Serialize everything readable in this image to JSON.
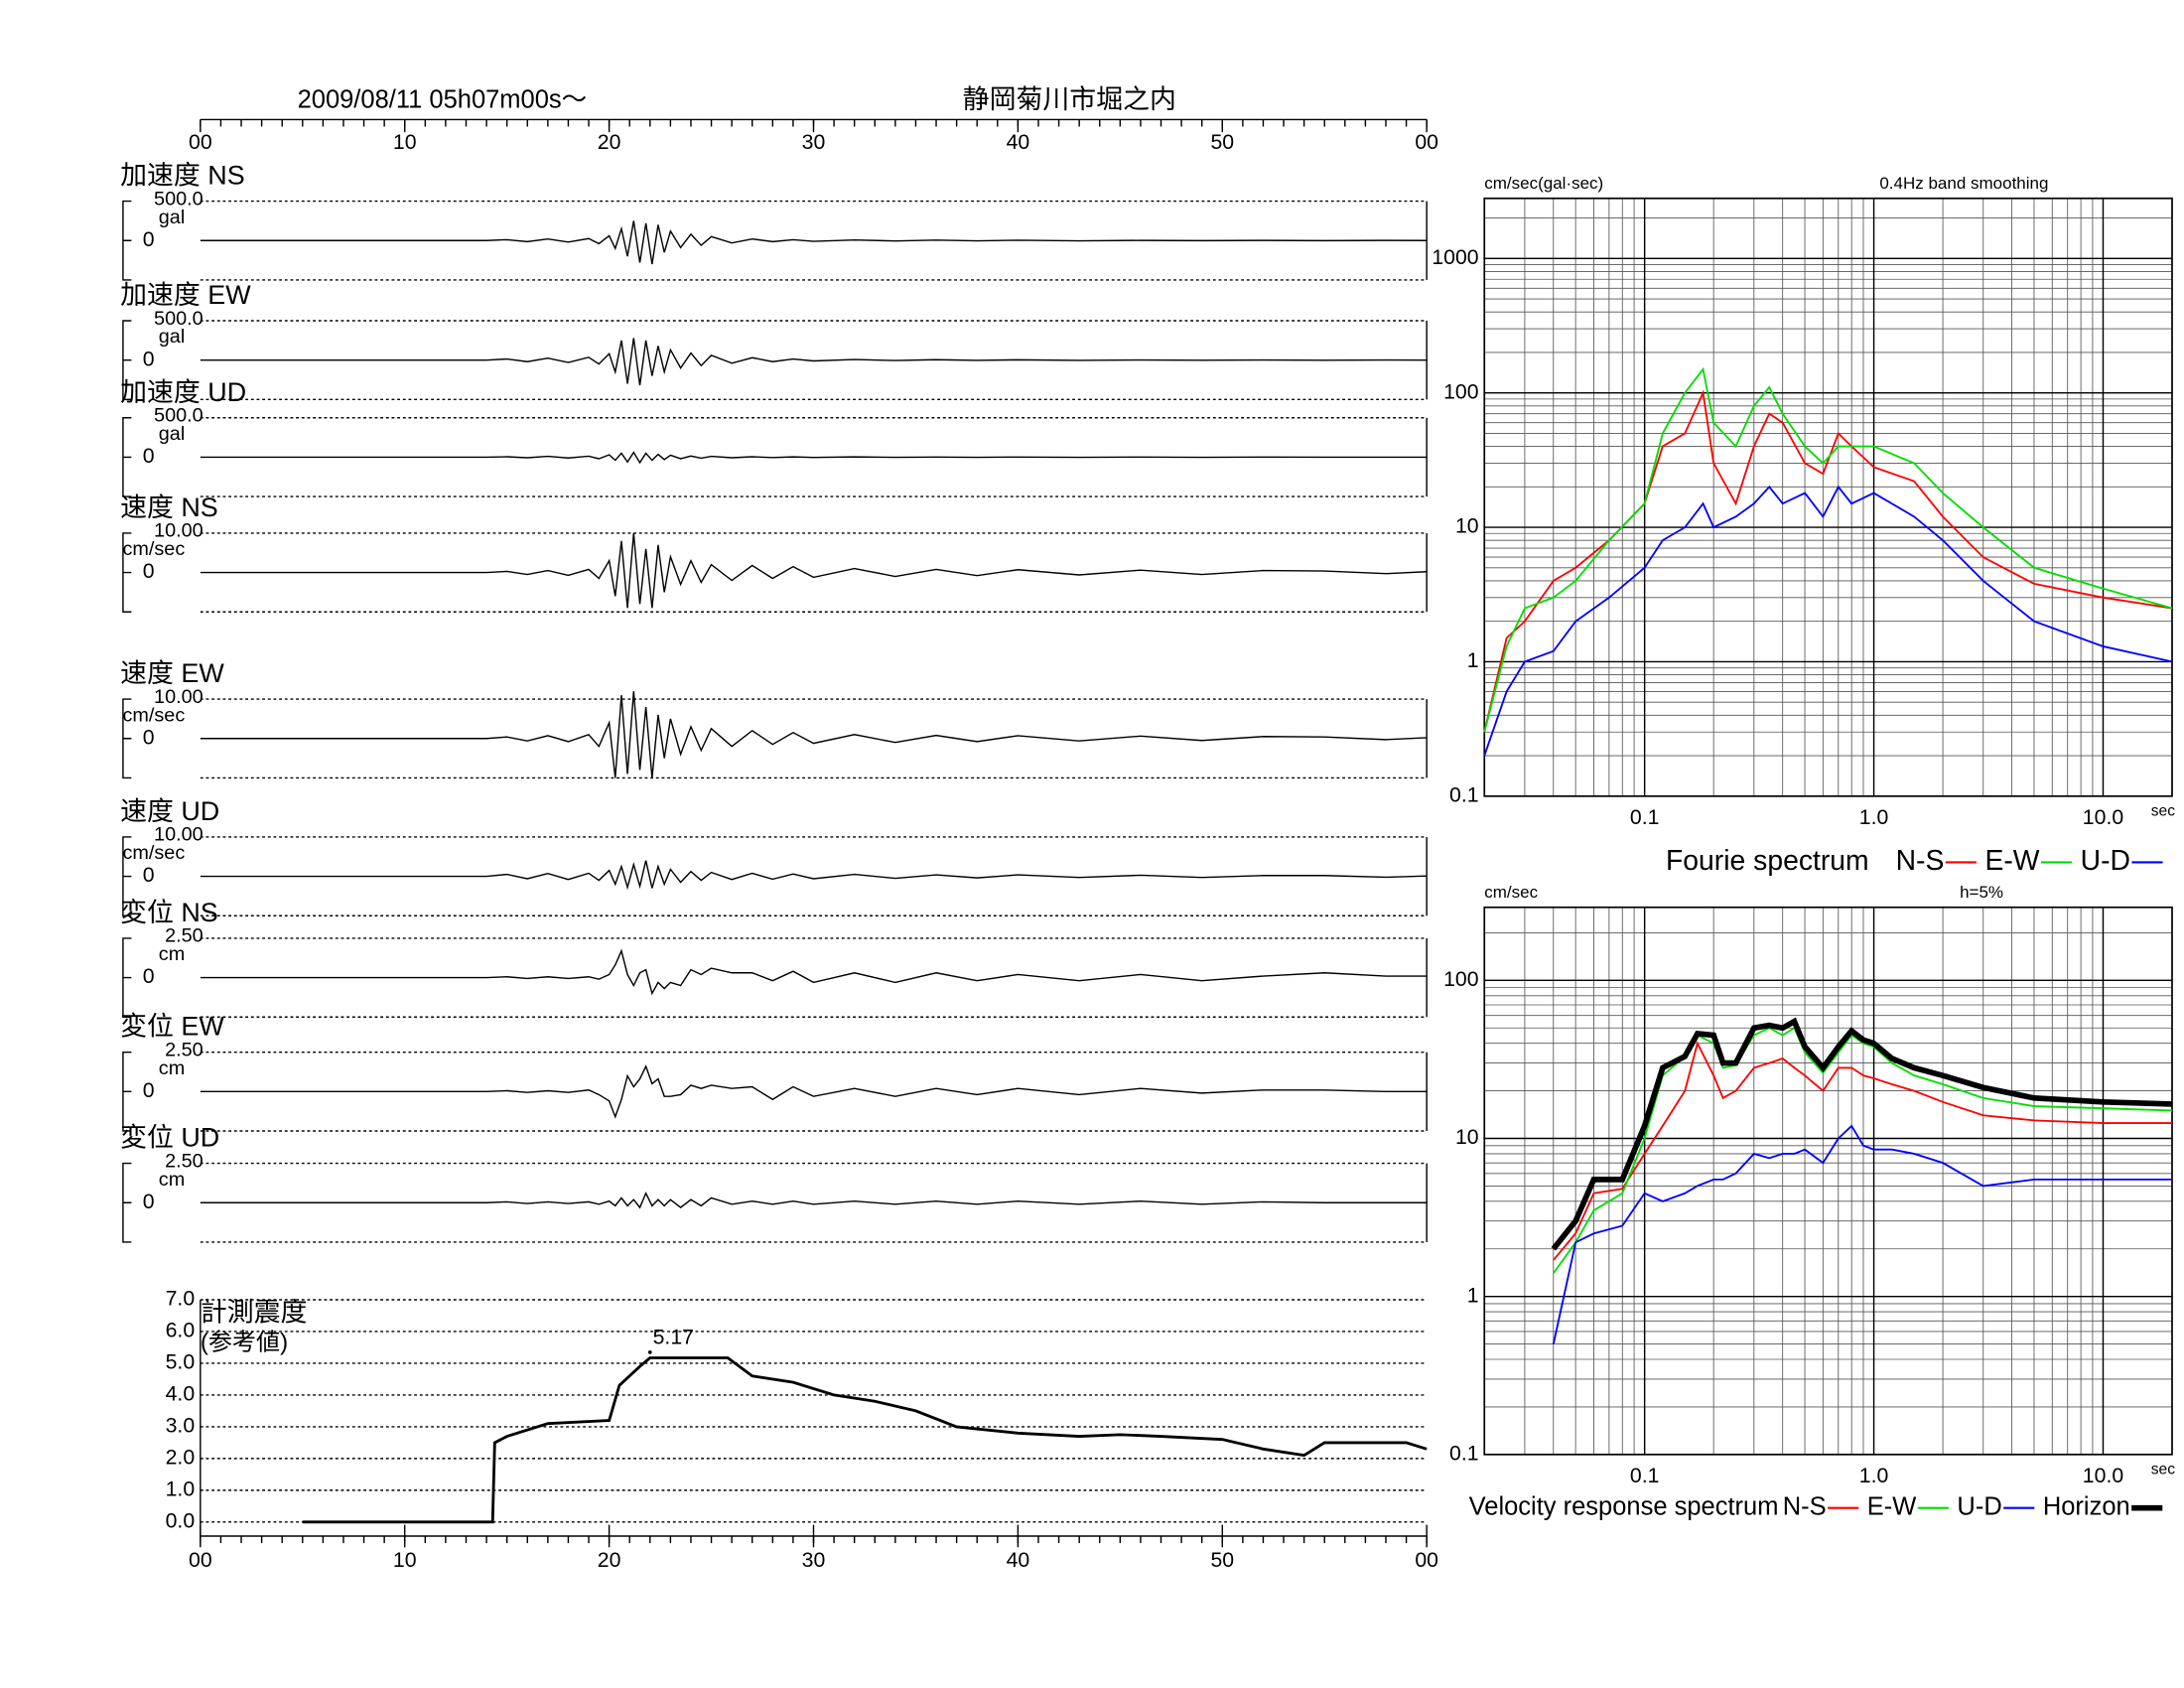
{
  "chart_data": [
    {
      "type": "waveform",
      "title": "2009/08/11  05h07m00s〜",
      "subtitle": "静岡菊川市堀之内",
      "xlim": [
        0,
        60
      ],
      "xticks": [
        {
          "value": 0,
          "label": "00"
        },
        10,
        20,
        30,
        40,
        50,
        {
          "value": 60,
          "label": "00"
        }
      ],
      "x": [
        0,
        14,
        15,
        16,
        17,
        18,
        19,
        19.5,
        20,
        20.3,
        20.6,
        20.9,
        21.2,
        21.5,
        21.8,
        22.1,
        22.4,
        22.7,
        23,
        23.5,
        24,
        24.5,
        25,
        26,
        27,
        28,
        29,
        30,
        32,
        34,
        36,
        38,
        40,
        43,
        46,
        49,
        52,
        55,
        58,
        60
      ],
      "panels": [
        {
          "name": "加速度 NS",
          "unit": "gal",
          "ylim": [
            -500,
            500
          ],
          "yticks": [
            {
              "value": 500,
              "label": "500.0"
            },
            0
          ],
          "values": [
            0,
            0,
            10,
            -15,
            20,
            -20,
            25,
            -40,
            60,
            -100,
            150,
            -200,
            250,
            -280,
            220,
            -300,
            200,
            -150,
            120,
            -90,
            80,
            -60,
            50,
            -30,
            20,
            -15,
            10,
            -10,
            8,
            -6,
            5,
            -4,
            3,
            -3,
            2,
            -2,
            2,
            -1,
            1,
            0
          ]
        },
        {
          "name": "加速度 EW",
          "unit": "gal",
          "ylim": [
            -500,
            500
          ],
          "yticks": [
            {
              "value": 500,
              "label": "500.0"
            },
            0
          ],
          "values": [
            0,
            0,
            15,
            -20,
            25,
            -30,
            35,
            -50,
            80,
            -150,
            250,
            -300,
            280,
            -320,
            250,
            -200,
            180,
            -150,
            130,
            -100,
            90,
            -70,
            60,
            -40,
            30,
            -20,
            15,
            -10,
            8,
            -6,
            5,
            -4,
            3,
            -3,
            2,
            -2,
            2,
            -1,
            1,
            0
          ]
        },
        {
          "name": "加速度 UD",
          "unit": "gal",
          "ylim": [
            -500,
            500
          ],
          "yticks": [
            {
              "value": 500,
              "label": "500.0"
            },
            0
          ],
          "values": [
            0,
            0,
            5,
            -8,
            10,
            -10,
            12,
            -20,
            30,
            -40,
            50,
            -60,
            60,
            -70,
            50,
            -40,
            35,
            -30,
            25,
            -20,
            15,
            -12,
            10,
            -8,
            6,
            -5,
            4,
            -3,
            3,
            -2,
            2,
            -2,
            1,
            -1,
            1,
            -1,
            1,
            0,
            0,
            0
          ]
        },
        {
          "name": "速度 NS",
          "unit": "cm/sec",
          "ylim": [
            -10,
            10
          ],
          "yticks": [
            {
              "value": 10,
              "label": "10.00"
            },
            0
          ],
          "values": [
            0,
            0,
            0.3,
            -0.5,
            0.5,
            -0.7,
            0.8,
            -1.5,
            3,
            -6,
            8,
            -9,
            10,
            -8,
            6,
            -9,
            7,
            -5,
            4,
            -3,
            3,
            -2.5,
            2,
            -2,
            1.8,
            -1.5,
            1.5,
            -1.2,
            1,
            -1,
            0.8,
            -0.8,
            0.7,
            -0.6,
            0.6,
            -0.5,
            0.5,
            0.4,
            -0.3,
            0.2
          ]
        },
        {
          "name": "速度 EW",
          "unit": "cm/sec",
          "ylim": [
            -10,
            10
          ],
          "yticks": [
            {
              "value": 10,
              "label": "10.00"
            },
            0
          ],
          "values": [
            0,
            0,
            0.4,
            -0.6,
            0.7,
            -0.8,
            1,
            -2,
            4,
            -10,
            11,
            -9,
            12,
            -8,
            8,
            -10,
            6,
            -5,
            5,
            -4,
            3,
            -3,
            2.5,
            -2,
            2,
            -1.5,
            1.5,
            -1.2,
            1,
            -1,
            0.8,
            -0.8,
            0.7,
            -0.6,
            0.6,
            -0.5,
            0.5,
            0.4,
            -0.3,
            0.2
          ]
        },
        {
          "name": "速度 UD",
          "unit": "cm/sec",
          "ylim": [
            -10,
            10
          ],
          "yticks": [
            {
              "value": 10,
              "label": "10.00"
            },
            0
          ],
          "values": [
            0,
            0,
            0.5,
            -0.6,
            0.7,
            -0.8,
            0.8,
            -1,
            1.5,
            -2,
            2.5,
            -2.8,
            3,
            -2.5,
            4,
            -3,
            2.5,
            -2,
            1.8,
            -1.5,
            1.2,
            -1,
            1,
            -0.8,
            0.8,
            -0.7,
            0.6,
            -0.6,
            0.5,
            -0.5,
            0.4,
            -0.4,
            0.4,
            -0.3,
            0.3,
            -0.3,
            0.2,
            0.2,
            -0.2,
            0.1
          ]
        },
        {
          "name": "変位 NS",
          "unit": "cm",
          "ylim": [
            -2.5,
            2.5
          ],
          "yticks": [
            {
              "value": 2.5,
              "label": "2.50"
            },
            0
          ],
          "values": [
            0,
            0,
            0.05,
            -0.05,
            0.05,
            -0.05,
            0.05,
            -0.1,
            0.2,
            0.8,
            1.7,
            0.2,
            -0.5,
            0.3,
            0.5,
            -1,
            -0.3,
            -0.7,
            -0.3,
            -0.5,
            0.5,
            0.2,
            0.6,
            0.3,
            0.3,
            -0.2,
            0.4,
            -0.3,
            0.3,
            -0.3,
            0.3,
            -0.2,
            0.2,
            -0.2,
            0.2,
            -0.2,
            0.1,
            0.3,
            0.1,
            0.1
          ]
        },
        {
          "name": "変位 EW",
          "unit": "cm",
          "ylim": [
            -2.5,
            2.5
          ],
          "yticks": [
            {
              "value": 2.5,
              "label": "2.50"
            },
            0
          ],
          "values": [
            0,
            0,
            0.05,
            -0.05,
            0.05,
            -0.05,
            0.1,
            -0.2,
            -0.6,
            -1.6,
            -0.5,
            1,
            0.3,
            0.8,
            1.6,
            0.5,
            0.8,
            -0.3,
            -0.3,
            -0.2,
            0.4,
            0.2,
            0.4,
            0.2,
            0.3,
            -0.5,
            0.3,
            -0.3,
            0.2,
            -0.3,
            0.2,
            -0.2,
            0.2,
            -0.2,
            0.2,
            -0.1,
            0.1,
            0.1,
            0,
            0
          ]
        },
        {
          "name": "変位 UD",
          "unit": "cm",
          "ylim": [
            -2.5,
            2.5
          ],
          "yticks": [
            {
              "value": 2.5,
              "label": "2.50"
            },
            0
          ],
          "values": [
            0,
            0,
            0.05,
            -0.05,
            0.05,
            -0.05,
            0.05,
            -0.1,
            0.1,
            -0.2,
            0.3,
            -0.2,
            0.2,
            -0.3,
            0.6,
            -0.2,
            0.2,
            -0.2,
            0.2,
            -0.3,
            0.2,
            -0.2,
            0.3,
            -0.1,
            0.1,
            -0.1,
            0.1,
            -0.1,
            0.1,
            -0.1,
            0.1,
            -0.1,
            0.1,
            -0.1,
            0.1,
            -0.1,
            0.05,
            0,
            0,
            0
          ]
        }
      ]
    },
    {
      "type": "line",
      "title": "計測震度",
      "subtitle": "(参考値)",
      "xlim": [
        0,
        60
      ],
      "xticks": [
        {
          "value": 0,
          "label": "00"
        },
        10,
        20,
        30,
        40,
        50,
        {
          "value": 60,
          "label": "00"
        }
      ],
      "ylim": [
        0,
        7
      ],
      "yticks": [
        {
          "value": 0,
          "label": "0.0"
        },
        {
          "value": 1,
          "label": "1.0"
        },
        {
          "value": 2,
          "label": "2.0"
        },
        {
          "value": 3,
          "label": "3.0"
        },
        {
          "value": 4,
          "label": "4.0"
        },
        {
          "value": 5,
          "label": "5.0"
        },
        {
          "value": 6,
          "label": "6.0"
        },
        {
          "value": 7,
          "label": "7.0"
        }
      ],
      "grid": true,
      "x": [
        5,
        14.3,
        14.4,
        15,
        17,
        20,
        20.5,
        21.5,
        22,
        25.8,
        27,
        29,
        31,
        33,
        35,
        37,
        40,
        43,
        45,
        47,
        50,
        52,
        54,
        55,
        59,
        60
      ],
      "values": [
        0,
        0,
        2.5,
        2.7,
        3.1,
        3.2,
        4.3,
        4.9,
        5.17,
        5.17,
        4.6,
        4.4,
        4.0,
        3.8,
        3.5,
        3.0,
        2.8,
        2.7,
        2.75,
        2.7,
        2.6,
        2.3,
        2.1,
        2.5,
        2.5,
        2.3
      ],
      "peak": {
        "x": 22,
        "value": 5.17
      }
    },
    {
      "type": "loglog",
      "title": "Fourie spectrum",
      "ylabel": "cm/sec(gal·sec)",
      "subtitle": "0.4Hz band smoothing",
      "xlabel": "sec",
      "xlim": [
        0.02,
        20
      ],
      "ylim": [
        0.1,
        2800
      ],
      "xticks": [
        0.1,
        {
          "value": 1,
          "label": "1.0"
        },
        {
          "value": 10,
          "label": "10.0"
        }
      ],
      "yticks": [
        0.1,
        1,
        10,
        100,
        1000
      ],
      "minor_grid": true,
      "x": [
        0.02,
        0.025,
        0.03,
        0.04,
        0.05,
        0.07,
        0.1,
        0.12,
        0.15,
        0.18,
        0.2,
        0.25,
        0.3,
        0.35,
        0.4,
        0.5,
        0.6,
        0.7,
        0.8,
        1.0,
        1.5,
        2,
        3,
        5,
        10,
        20
      ],
      "series": [
        {
          "name": "N-S",
          "color": "#ff0000",
          "values": [
            0.3,
            1.5,
            2,
            4,
            5,
            8,
            15,
            40,
            50,
            100,
            30,
            15,
            40,
            70,
            60,
            30,
            25,
            50,
            40,
            28,
            22,
            12,
            6,
            3.8,
            3,
            2.5
          ]
        },
        {
          "name": "E-W",
          "color": "#00dd00",
          "values": [
            0.3,
            1.3,
            2.5,
            3,
            4,
            8,
            15,
            50,
            100,
            150,
            60,
            40,
            80,
            110,
            70,
            40,
            30,
            40,
            40,
            40,
            30,
            18,
            10,
            5,
            3.5,
            2.5
          ]
        },
        {
          "name": "U-D",
          "color": "#0000ff",
          "values": [
            0.2,
            0.6,
            1,
            1.2,
            2,
            3,
            5,
            8,
            10,
            15,
            10,
            12,
            15,
            20,
            15,
            18,
            12,
            20,
            15,
            18,
            12,
            8,
            4,
            2,
            1.3,
            1
          ]
        }
      ]
    },
    {
      "type": "loglog",
      "title": "Velocity response spectrum",
      "ylabel": "cm/sec",
      "subtitle": "h=5%",
      "xlabel": "sec",
      "xlim": [
        0.02,
        20
      ],
      "ylim": [
        0.1,
        290
      ],
      "xticks": [
        0.1,
        {
          "value": 1,
          "label": "1.0"
        },
        {
          "value": 10,
          "label": "10.0"
        }
      ],
      "yticks": [
        0.1,
        1,
        10,
        100
      ],
      "minor_grid": true,
      "x": [
        0.04,
        0.05,
        0.06,
        0.08,
        0.1,
        0.12,
        0.15,
        0.17,
        0.2,
        0.22,
        0.25,
        0.3,
        0.35,
        0.4,
        0.45,
        0.5,
        0.6,
        0.7,
        0.8,
        0.9,
        1.0,
        1.2,
        1.5,
        2,
        3,
        5,
        10,
        20
      ],
      "series": [
        {
          "name": "N-S",
          "color": "#ff0000",
          "values": [
            1.7,
            2.5,
            4.5,
            4.8,
            8,
            12,
            20,
            40,
            25,
            18,
            20,
            28,
            30,
            32,
            28,
            25,
            20,
            28,
            28,
            25,
            24,
            22,
            20,
            17,
            14,
            13,
            12.5,
            12.5
          ]
        },
        {
          "name": "E-W",
          "color": "#00dd00",
          "values": [
            1.4,
            2.2,
            3.5,
            4.5,
            10,
            25,
            33,
            45,
            40,
            28,
            29,
            45,
            50,
            45,
            50,
            35,
            26,
            35,
            45,
            40,
            38,
            30,
            25,
            22,
            18,
            16,
            15.5,
            15
          ]
        },
        {
          "name": "U-D",
          "color": "#0000ff",
          "values": [
            0.5,
            2.2,
            2.5,
            2.8,
            4.5,
            4,
            4.5,
            5,
            5.5,
            5.5,
            6,
            8,
            7.5,
            8,
            8,
            8.5,
            7,
            10,
            12,
            9,
            8.5,
            8.5,
            8,
            7,
            5,
            5.5,
            5.5,
            5.5
          ]
        },
        {
          "name": "Horizon",
          "color": "#000000",
          "bold": true,
          "values": [
            2,
            3,
            5.5,
            5.5,
            12,
            28,
            33,
            46,
            45,
            30,
            30,
            50,
            52,
            50,
            55,
            38,
            28,
            38,
            48,
            42,
            40,
            32,
            28,
            25,
            21,
            18,
            17,
            16.5
          ]
        }
      ]
    }
  ]
}
